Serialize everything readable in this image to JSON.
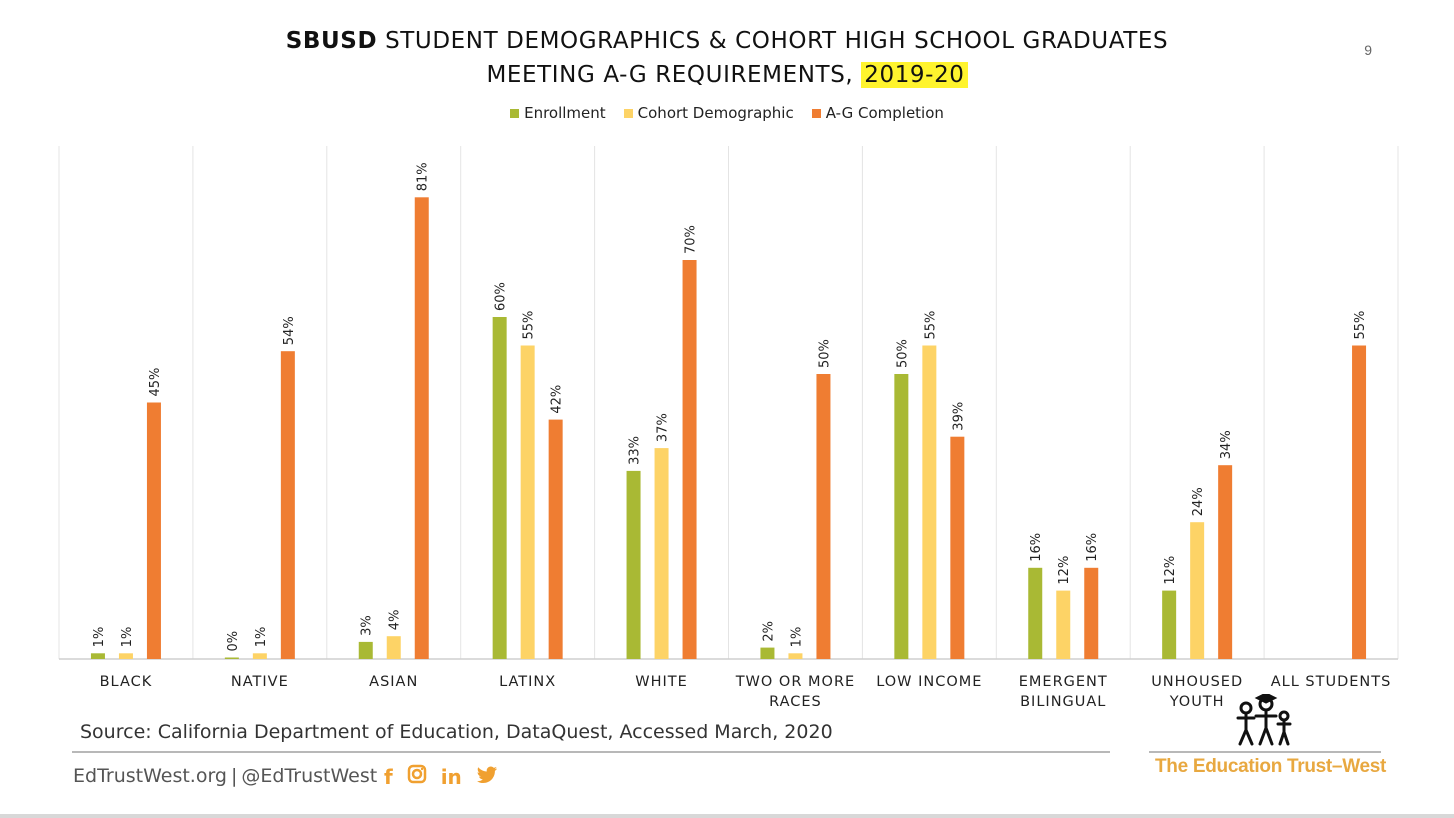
{
  "title": {
    "bold_part": "SBUSD",
    "line1_rest": " STUDENT DEMOGRAPHICS & COHORT HIGH SCHOOL GRADUATES",
    "line2_prefix": "MEETING A-G REQUIREMENTS, ",
    "year": "2019-20"
  },
  "page_number": "9",
  "legend": [
    {
      "label": "Enrollment",
      "color": "#a9b934"
    },
    {
      "label": "Cohort Demographic",
      "color": "#fdd366"
    },
    {
      "label": "A-G Completion",
      "color": "#ef7d32"
    }
  ],
  "chart_data": {
    "type": "bar",
    "categories": [
      [
        "BLACK"
      ],
      [
        "NATIVE"
      ],
      [
        "ASIAN"
      ],
      [
        "LATINX"
      ],
      [
        "WHITE"
      ],
      [
        "TWO OR MORE",
        "RACES"
      ],
      [
        "LOW INCOME"
      ],
      [
        "EMERGENT",
        "BILINGUAL"
      ],
      [
        "UNHOUSED",
        "YOUTH"
      ],
      [
        "ALL STUDENTS"
      ]
    ],
    "series": [
      {
        "name": "Enrollment",
        "color": "#a9b934",
        "values": [
          1,
          0,
          3,
          60,
          33,
          2,
          50,
          16,
          12,
          null
        ]
      },
      {
        "name": "Cohort Demographic",
        "color": "#fdd366",
        "values": [
          1,
          1,
          4,
          55,
          37,
          1,
          55,
          12,
          24,
          null
        ]
      },
      {
        "name": "A-G Completion",
        "color": "#ef7d32",
        "values": [
          45,
          54,
          81,
          42,
          70,
          50,
          39,
          16,
          34,
          55
        ]
      }
    ],
    "value_suffix": "%",
    "ylim": [
      0,
      90
    ],
    "grid": "vertical-separators",
    "legend_position": "top"
  },
  "source": "Source: California Department of Education, DataQuest, Accessed March, 2020",
  "footer": {
    "website": "EdTrustWest.org",
    "separator": "|",
    "handle": "@EdTrustWest"
  },
  "social_icons": [
    {
      "name": "facebook-icon",
      "glyph": "f"
    },
    {
      "name": "instagram-icon",
      "glyph": "◙"
    },
    {
      "name": "linkedin-icon",
      "glyph": "in"
    },
    {
      "name": "twitter-icon",
      "glyph": "🐦"
    }
  ],
  "logo_text": "The Education Trust–West"
}
